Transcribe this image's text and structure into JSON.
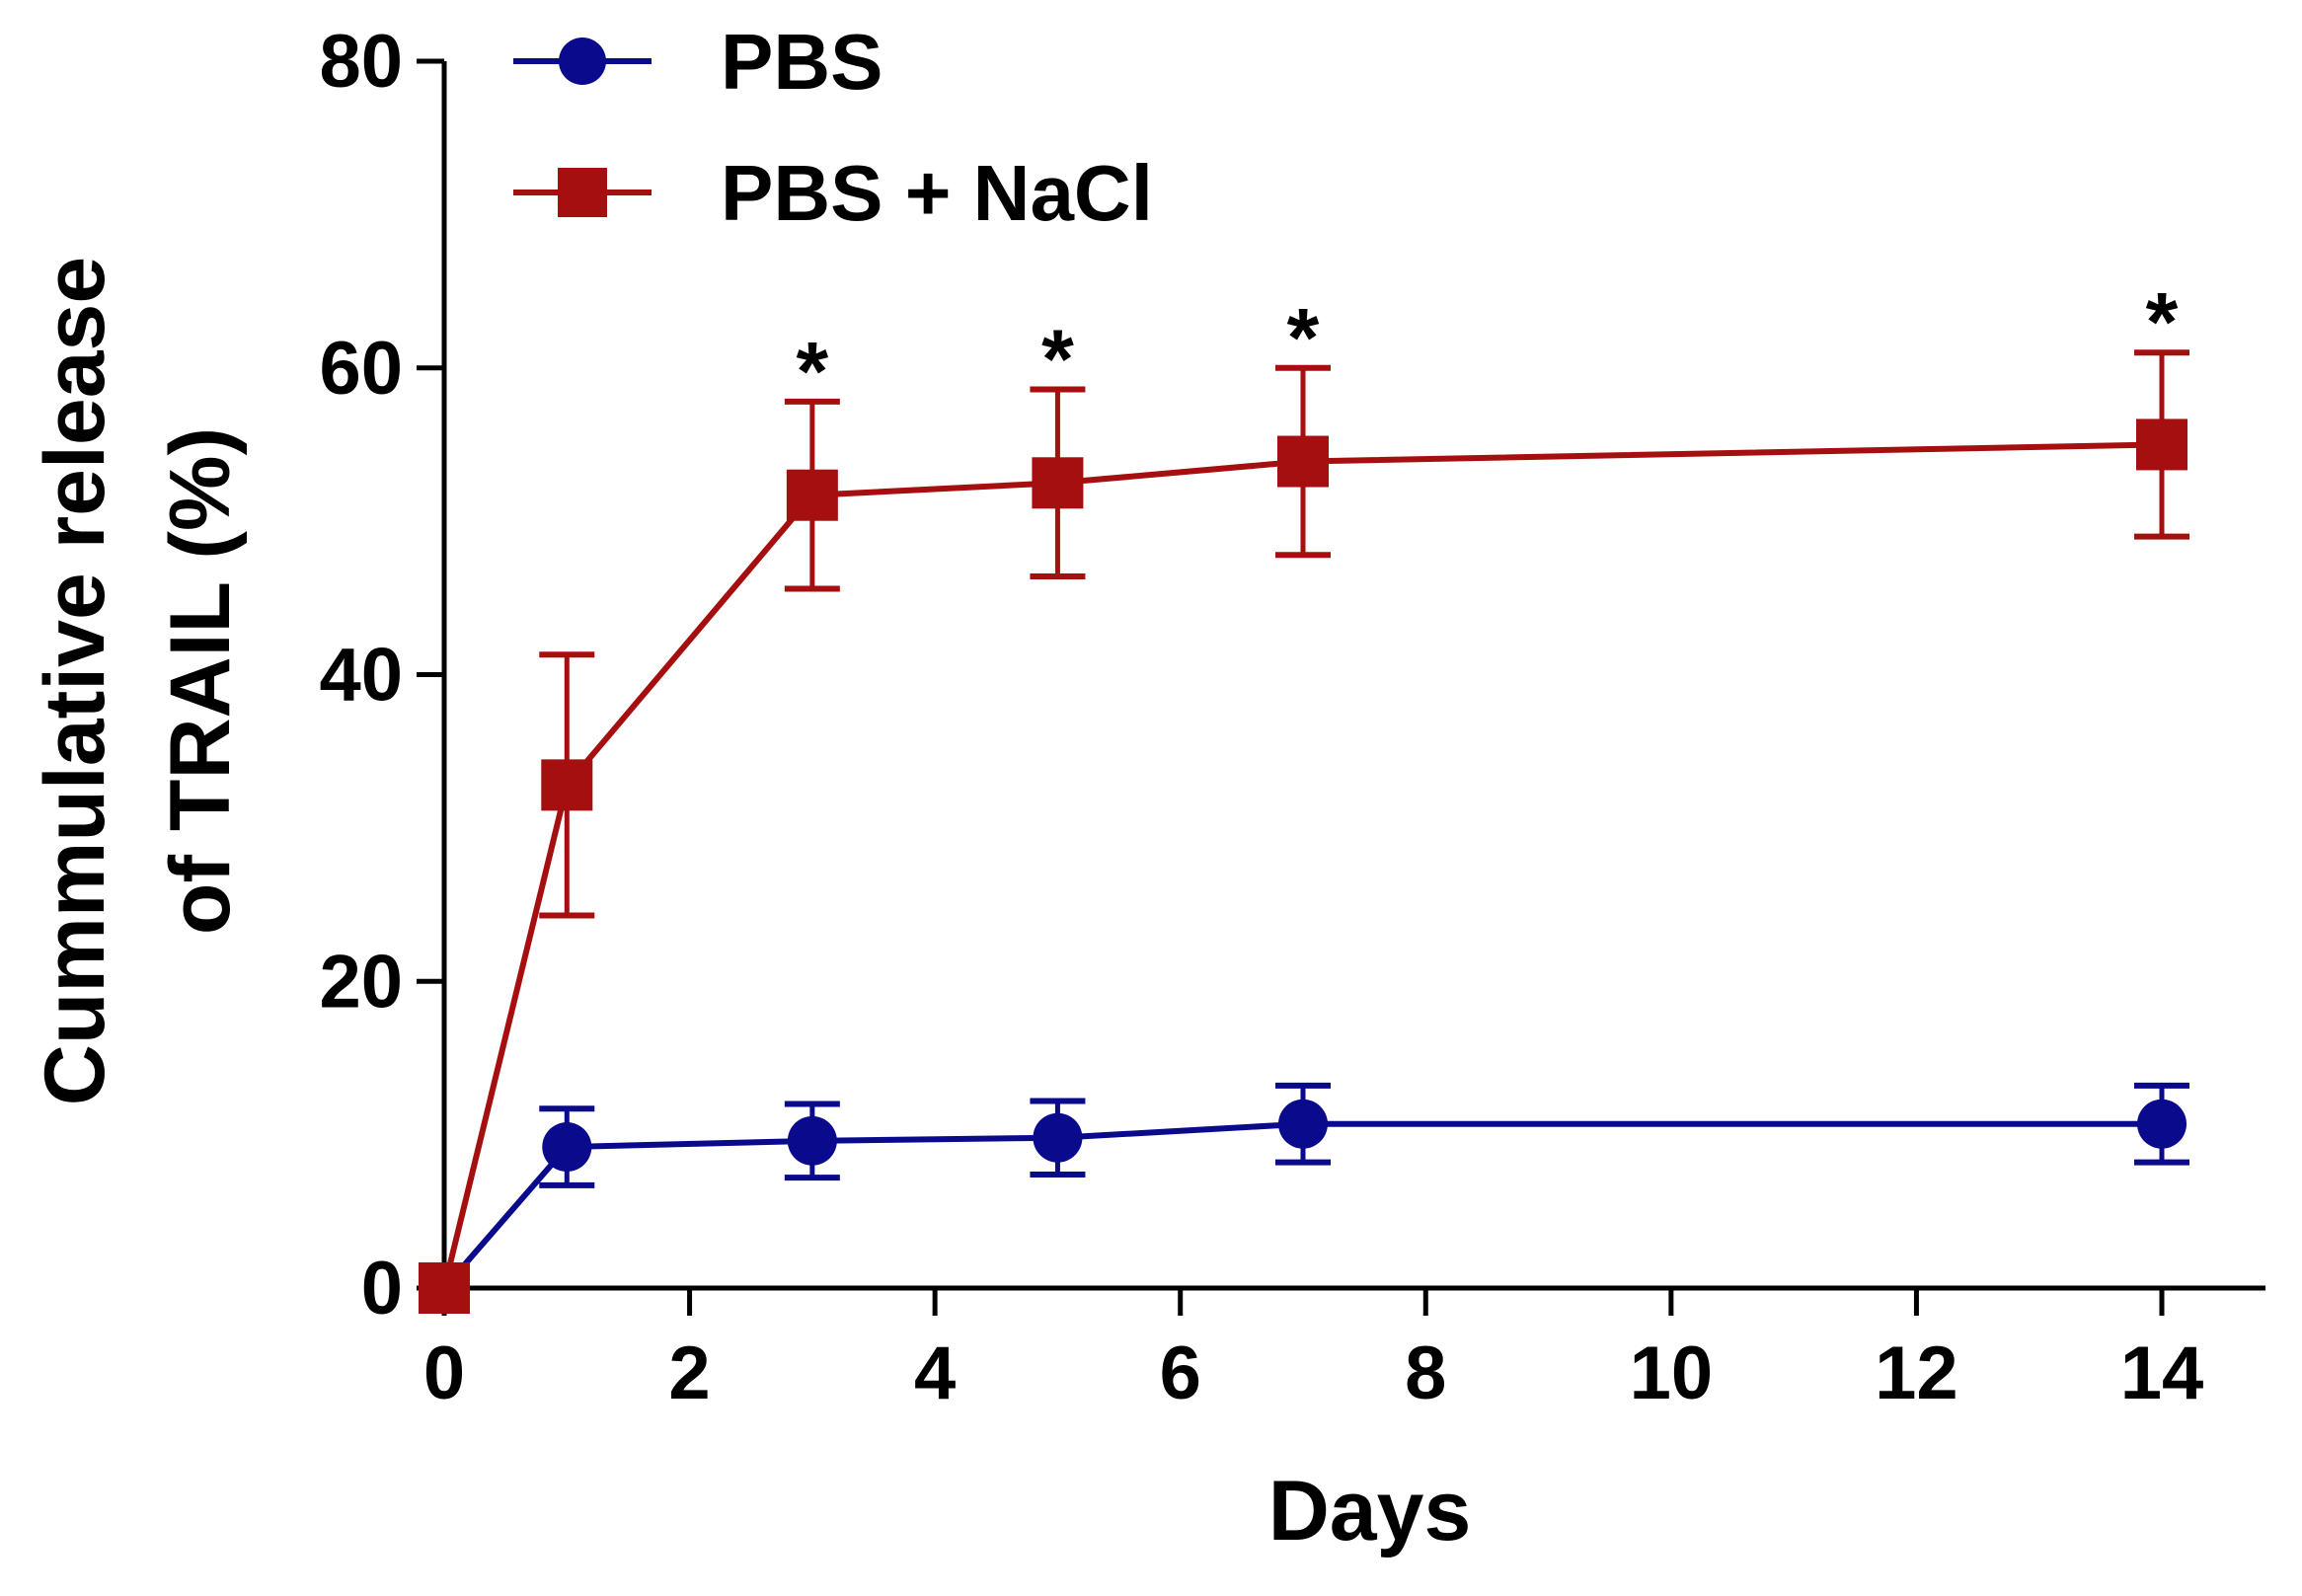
{
  "chart_data": {
    "type": "line",
    "title": "",
    "xlabel": "Days",
    "ylabel_line1": "Cummulative release",
    "ylabel_line2": "of TRAIL (%)",
    "xlim": [
      0,
      15
    ],
    "ylim": [
      0,
      80
    ],
    "x_ticks": [
      0,
      2,
      4,
      6,
      8,
      10,
      12,
      14
    ],
    "x_tick_labels": [
      "0",
      "2",
      "4",
      "6",
      "8",
      "10",
      "12",
      "14"
    ],
    "y_ticks": [
      0,
      20,
      40,
      60,
      80
    ],
    "y_tick_labels": [
      "0",
      "20",
      "40",
      "60",
      "80"
    ],
    "x": [
      0,
      1,
      3,
      5,
      7,
      14
    ],
    "series": [
      {
        "name": "PBS",
        "marker": "circle",
        "color": "#0a0a8c",
        "values": [
          0,
          9.2,
          9.6,
          9.8,
          10.7,
          10.7
        ],
        "errors": [
          0,
          2.5,
          2.4,
          2.4,
          2.5,
          2.5
        ]
      },
      {
        "name": "PBS + NaCl",
        "marker": "square",
        "color": "#a50f0f",
        "values": [
          0,
          32.8,
          51.7,
          52.5,
          53.9,
          55.0
        ],
        "errors": [
          0,
          8.5,
          6.1,
          6.1,
          6.1,
          6.0
        ]
      }
    ],
    "significance": [
      {
        "x": 3,
        "label": "*"
      },
      {
        "x": 5,
        "label": "*"
      },
      {
        "x": 7,
        "label": "*"
      },
      {
        "x": 14,
        "label": "*"
      }
    ],
    "grid": false,
    "legend_position": "top-left"
  }
}
